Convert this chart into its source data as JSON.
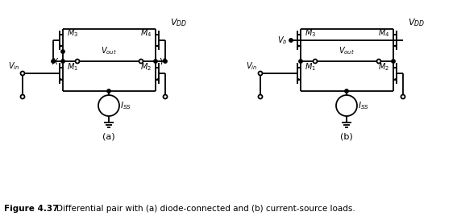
{
  "fig_width": 5.67,
  "fig_height": 2.68,
  "dpi": 100,
  "background_color": "#ffffff",
  "line_color": "#000000",
  "line_width": 1.3,
  "caption_bold": "Figure 4.37",
  "caption_rest": "    Differential pair with (a) diode-connected and (b) current-source loads."
}
